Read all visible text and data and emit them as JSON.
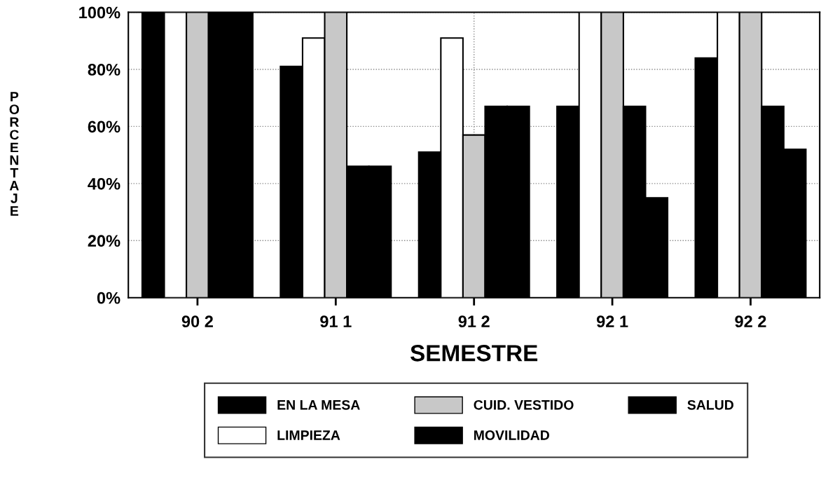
{
  "chart_data": {
    "type": "bar",
    "xlabel": "SEMESTRE",
    "ylabel": "PORCENTAJE",
    "categories": [
      "90 2",
      "91 1",
      "91 2",
      "92 1",
      "92 2"
    ],
    "series": [
      {
        "name": "EN LA MESA",
        "color": "#000000",
        "values": [
          100,
          81,
          51,
          67,
          84
        ]
      },
      {
        "name": "LIMPIEZA",
        "color": "#ffffff",
        "values": [
          100,
          91,
          91,
          100,
          100
        ]
      },
      {
        "name": "CUID. VESTIDO",
        "color": "#c8c8c8",
        "values": [
          100,
          100,
          57,
          100,
          100
        ]
      },
      {
        "name": "MOVILIDAD",
        "color": "#000000",
        "values": [
          100,
          46,
          67,
          67,
          67
        ]
      },
      {
        "name": "SALUD",
        "color": "#000000",
        "values": [
          100,
          46,
          67,
          35,
          52
        ]
      }
    ],
    "ylim": [
      0,
      100
    ],
    "yticks": [
      {
        "value": 0,
        "label": "0%"
      },
      {
        "value": 20,
        "label": "20%"
      },
      {
        "value": 40,
        "label": "40%"
      },
      {
        "value": 60,
        "label": "60%"
      },
      {
        "value": 80,
        "label": "80%"
      },
      {
        "value": 100,
        "label": "100%"
      }
    ],
    "grid": true,
    "legend": "bottom"
  }
}
